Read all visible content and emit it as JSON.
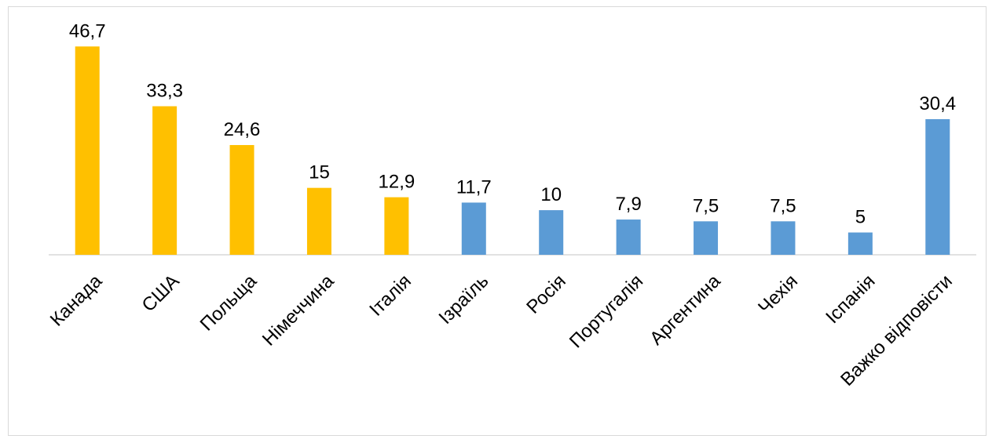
{
  "chart_data": {
    "type": "bar",
    "title": "",
    "xlabel": "",
    "ylabel": "",
    "ylim": [
      0,
      50
    ],
    "grid": false,
    "legend": "none",
    "categories": [
      "Канада",
      "США",
      "Польща",
      "Німеччина",
      "Італія",
      "Ізраїль",
      "Росія",
      "Португалія",
      "Аргентина",
      "Чехія",
      "Іспанія",
      "Важко відповісти"
    ],
    "values": [
      46.7,
      33.3,
      24.6,
      15,
      12.9,
      11.7,
      10,
      7.9,
      7.5,
      7.5,
      5,
      30.4
    ],
    "value_labels": [
      "46,7",
      "33,3",
      "24,6",
      "15",
      "12,9",
      "11,7",
      "10",
      "7,9",
      "7,5",
      "7,5",
      "5",
      "30,4"
    ],
    "bar_colors": [
      "#FFC000",
      "#FFC000",
      "#FFC000",
      "#FFC000",
      "#FFC000",
      "#5B9BD5",
      "#5B9BD5",
      "#5B9BD5",
      "#5B9BD5",
      "#5B9BD5",
      "#5B9BD5",
      "#5B9BD5"
    ],
    "axis_color": "#D9D9D9"
  }
}
